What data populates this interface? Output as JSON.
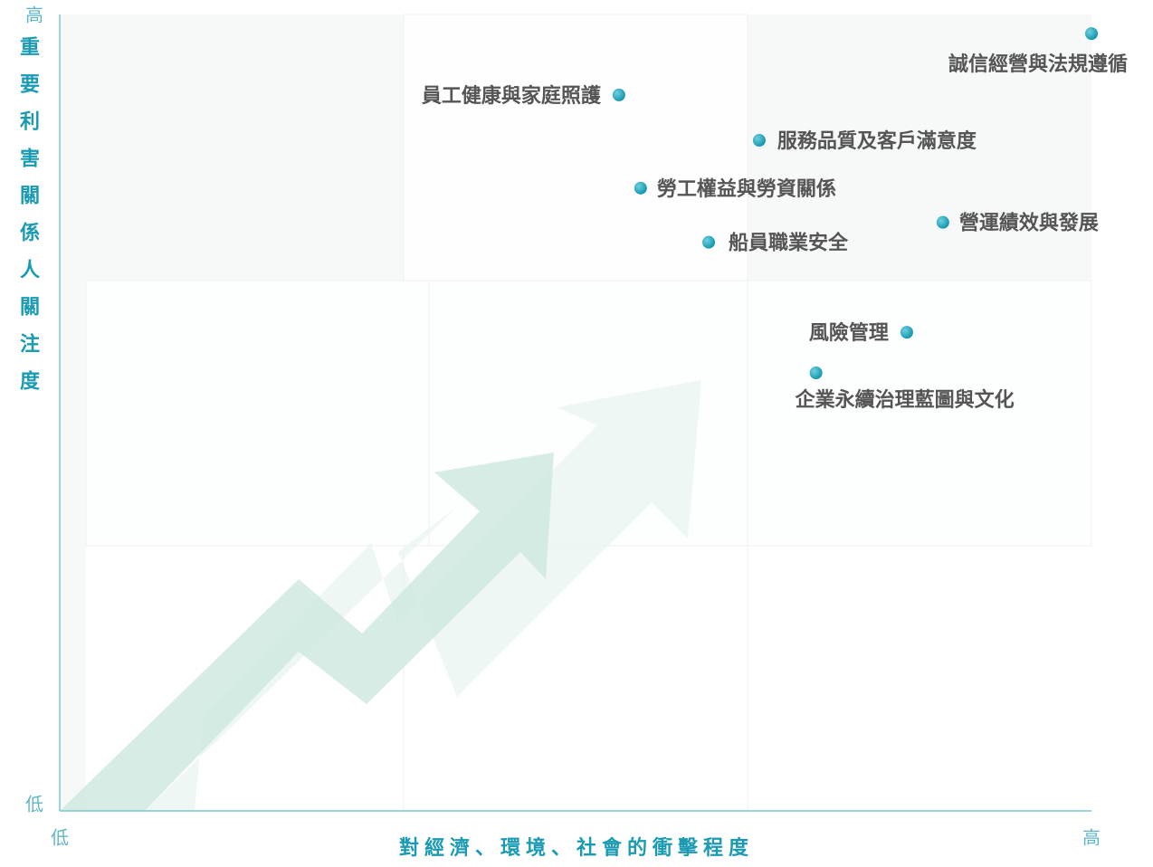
{
  "chart_data": {
    "type": "scatter",
    "xlabel": "對經濟、環境、社會的衝擊程度",
    "ylabel": "重要利害關係人關注度",
    "labels": [
      "誠信經營與法規遵循",
      "員工健康與家庭照護",
      "服務品質及客戶滿意度",
      "勞工權益與勞資關係",
      "營運績效與發展",
      "船員職業安全",
      "風險管理",
      "企業永續治理藍圖與文化"
    ],
    "x": [
      100,
      54.2,
      67.8,
      56.3,
      85.6,
      62.9,
      82.1,
      73.3
    ],
    "values": [
      97.6,
      89.9,
      84.2,
      78.2,
      73.9,
      71.4,
      60.1,
      55.0
    ],
    "color": "#0e93ab",
    "xlim": [
      0,
      100
    ],
    "ylim": [
      0,
      100
    ],
    "xticks": [
      {
        "value": 0,
        "label": "低"
      },
      {
        "value": 100,
        "label": "高"
      }
    ],
    "yticks": [
      {
        "value": 0,
        "label": "低"
      },
      {
        "value": 100,
        "label": "高"
      }
    ]
  }
}
